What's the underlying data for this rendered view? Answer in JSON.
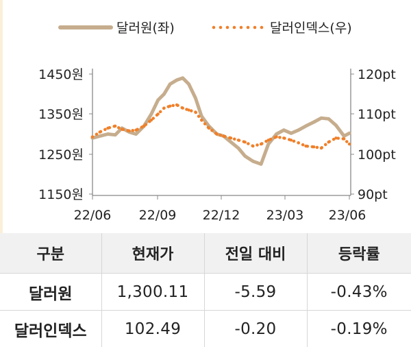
{
  "legend": {
    "series1": "달러원(좌)",
    "series2": "달러인덱스(우)"
  },
  "colors": {
    "krw": "#c6ad8d",
    "dxy": "#f0802a",
    "axis": "#888888",
    "header_bg": "#f1f1f1",
    "strip": "#fbefd9"
  },
  "chart_data": {
    "type": "line",
    "x_tick_labels": [
      "22/06",
      "22/09",
      "22/12",
      "23/03",
      "23/06"
    ],
    "left_axis": {
      "tick_labels": [
        "1450원",
        "1350원",
        "1250원",
        "1150원"
      ],
      "ylim": [
        1150,
        1450
      ]
    },
    "right_axis": {
      "tick_labels": [
        "120pt",
        "110pt",
        "100pt",
        "90pt"
      ],
      "ylim": [
        90,
        120
      ]
    },
    "series": [
      {
        "name": "달러원(좌)",
        "axis": "left",
        "style": "solid",
        "x": [
          "2022-06-01",
          "2022-06-12",
          "2022-06-24",
          "2022-07-05",
          "2022-07-15",
          "2022-07-26",
          "2022-08-05",
          "2022-08-17",
          "2022-08-28",
          "2022-09-07",
          "2022-09-16",
          "2022-09-25",
          "2022-10-05",
          "2022-10-14",
          "2022-10-23",
          "2022-11-02",
          "2022-11-11",
          "2022-11-22",
          "2022-12-04",
          "2022-12-14",
          "2022-12-25",
          "2023-01-05",
          "2023-01-15",
          "2023-01-27",
          "2023-02-08",
          "2023-02-19",
          "2023-03-03",
          "2023-03-14",
          "2023-03-25",
          "2023-04-05",
          "2023-04-16",
          "2023-04-28",
          "2023-05-09",
          "2023-05-20",
          "2023-05-31",
          "2023-06-12",
          "2023-06-20"
        ],
        "values": [
          1290,
          1295,
          1300,
          1298,
          1315,
          1305,
          1300,
          1320,
          1350,
          1385,
          1400,
          1425,
          1435,
          1440,
          1425,
          1390,
          1345,
          1320,
          1300,
          1295,
          1280,
          1265,
          1245,
          1232,
          1225,
          1275,
          1300,
          1310,
          1302,
          1310,
          1320,
          1330,
          1340,
          1338,
          1322,
          1295,
          1302
        ]
      },
      {
        "name": "달러인덱스(우)",
        "axis": "right",
        "style": "dotted",
        "x": [
          "2022-06-01",
          "2022-06-12",
          "2022-06-24",
          "2022-07-05",
          "2022-07-15",
          "2022-07-26",
          "2022-08-05",
          "2022-08-17",
          "2022-08-28",
          "2022-09-07",
          "2022-09-16",
          "2022-09-25",
          "2022-10-05",
          "2022-10-14",
          "2022-10-23",
          "2022-11-02",
          "2022-11-11",
          "2022-11-22",
          "2022-12-04",
          "2022-12-14",
          "2022-12-25",
          "2023-01-05",
          "2023-01-15",
          "2023-01-27",
          "2023-02-08",
          "2023-02-19",
          "2023-03-03",
          "2023-03-14",
          "2023-03-25",
          "2023-04-05",
          "2023-04-16",
          "2023-04-28",
          "2023-05-09",
          "2023-05-20",
          "2023-05-31",
          "2023-06-12",
          "2023-06-20"
        ],
        "values": [
          104.3,
          105.5,
          106.5,
          107.0,
          106.2,
          105.8,
          106.0,
          107.0,
          108.5,
          110.0,
          111.5,
          112.0,
          112.3,
          111.5,
          111.0,
          110.5,
          108.5,
          106.5,
          105.0,
          104.5,
          104.0,
          103.5,
          103.0,
          102.0,
          102.5,
          103.5,
          104.3,
          104.0,
          103.5,
          102.8,
          102.0,
          101.8,
          101.5,
          103.0,
          104.0,
          103.8,
          102.49
        ]
      }
    ]
  },
  "table": {
    "headers": [
      "구분",
      "현재가",
      "전일 대비",
      "등락률"
    ],
    "rows": [
      [
        "달러원",
        "1,300.11",
        "-5.59",
        "-0.43%"
      ],
      [
        "달러인덱스",
        "102.49",
        "-0.20",
        "-0.19%"
      ]
    ]
  }
}
